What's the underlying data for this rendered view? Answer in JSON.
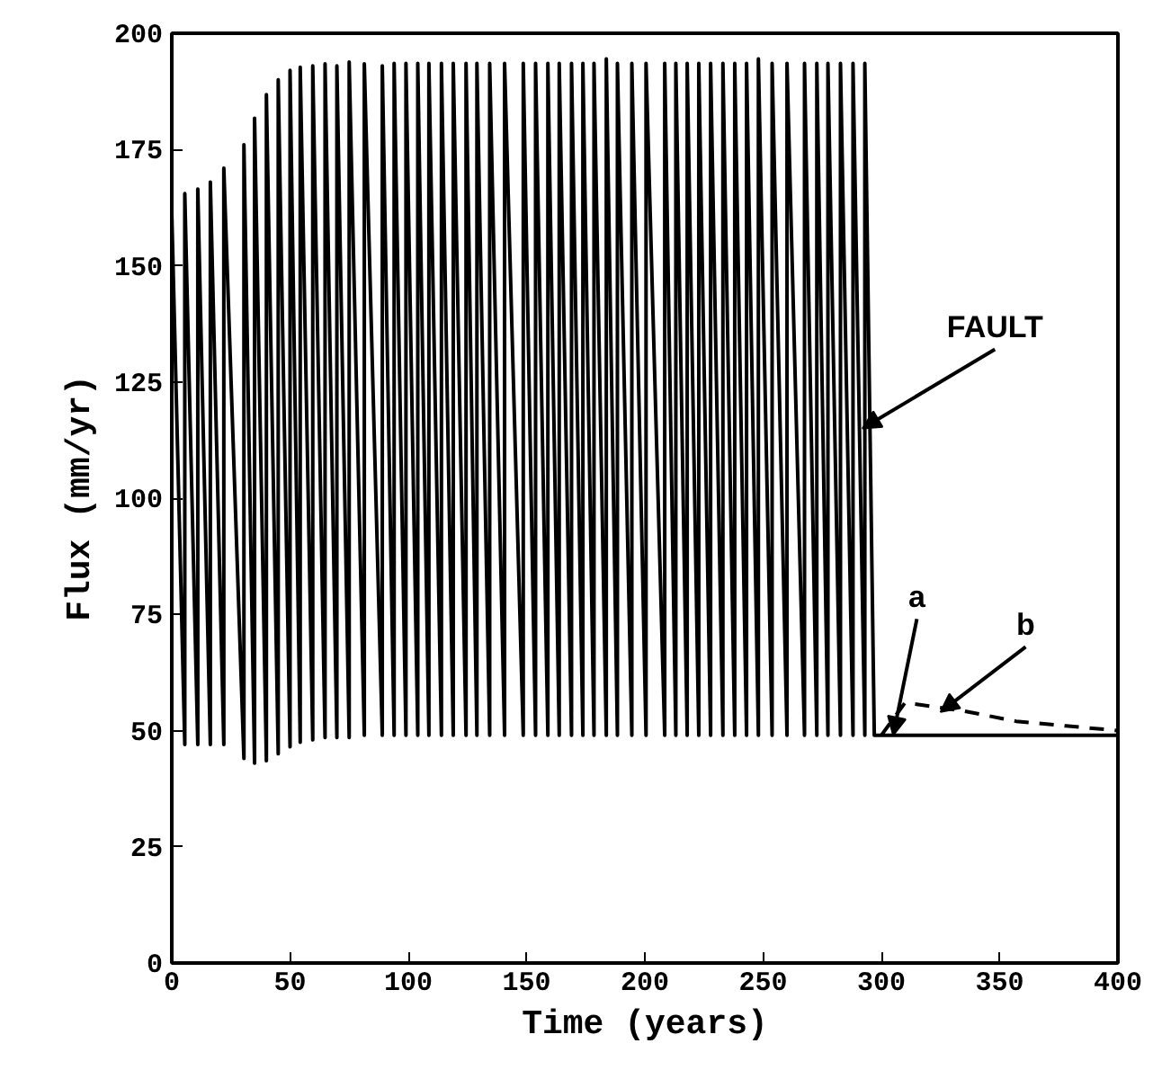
{
  "chart_data": {
    "type": "line",
    "xlabel": "Time (years)",
    "ylabel": "Flux (mm/yr)",
    "xlim": [
      0,
      400
    ],
    "ylim": [
      0,
      200
    ],
    "xticks": [
      0,
      50,
      100,
      150,
      200,
      250,
      300,
      350,
      400
    ],
    "yticks": [
      0,
      25,
      50,
      75,
      100,
      125,
      150,
      175,
      200
    ],
    "grid": false,
    "marker": "none",
    "series": [
      {
        "color": "#000000",
        "line_style": "solid",
        "x": [
          0,
          0,
          5.5,
          5.5,
          11,
          11,
          16.3,
          16.3,
          22,
          22,
          30.5,
          30.5,
          35,
          35,
          40,
          40,
          45,
          45,
          50,
          50,
          54.3,
          54.3,
          59.6,
          59.6,
          64.8,
          64.8,
          69.8,
          69.8,
          75,
          75,
          81.4,
          81.4,
          89,
          89,
          94,
          94,
          99,
          99,
          104,
          104,
          108.7,
          108.7,
          114,
          114,
          119,
          119,
          124.4,
          124.4,
          129,
          129,
          134.4,
          134.4,
          140.7,
          140.7,
          148.6,
          148.6,
          153.8,
          153.8,
          159,
          159,
          163.8,
          163.8,
          169,
          169,
          173.8,
          173.8,
          178.5,
          178.5,
          183.7,
          183.7,
          188.4,
          188.4,
          194.5,
          194.5,
          200.5,
          200.5,
          208.4,
          208.4,
          213.1,
          213.1,
          217.9,
          217.9,
          222.8,
          222.8,
          227.8,
          227.8,
          233,
          233,
          238,
          238,
          243,
          243,
          248,
          248,
          253.8,
          253.8,
          260.1,
          260.1,
          267.5,
          267.5,
          272.7,
          272.7,
          277.4,
          277.4,
          282.7,
          282.7,
          288,
          288,
          293,
          293,
          297,
          400
        ],
        "values": [
          47,
          161.5,
          47,
          165.5,
          47,
          166.5,
          47,
          168,
          47,
          171,
          44,
          176,
          43,
          181.7,
          43.5,
          186.8,
          45,
          190,
          46.5,
          192,
          47.5,
          192.7,
          48,
          193,
          48.5,
          193.4,
          48.5,
          193,
          48.5,
          193.8,
          49,
          193.4,
          49,
          193,
          49,
          193.5,
          49,
          193.5,
          49,
          193.5,
          49,
          193.5,
          49,
          193.5,
          49,
          193.5,
          49,
          193.5,
          49,
          193.5,
          49,
          193.5,
          49,
          193.5,
          49,
          193.5,
          49,
          193.5,
          49,
          193.5,
          49,
          193.5,
          49,
          193.5,
          49,
          193.5,
          49,
          193.5,
          49,
          194.5,
          49,
          193.5,
          49,
          193.5,
          49,
          193.5,
          49,
          193.5,
          49,
          193.5,
          49,
          193.5,
          49,
          193.5,
          49,
          193.5,
          49,
          193.5,
          49,
          193.5,
          49,
          193.5,
          49,
          194.5,
          49,
          193.5,
          49,
          193.5,
          49,
          193.5,
          49,
          193.5,
          49,
          193.5,
          49,
          193.5,
          49,
          193.5,
          49,
          193.5,
          49,
          49
        ]
      },
      {
        "color": "#000000",
        "line_style": "dashed",
        "x": [
          300,
          310,
          335,
          357,
          378,
          400
        ],
        "values": [
          49,
          56,
          54.2,
          52,
          51,
          50
        ]
      }
    ],
    "annotations": [
      {
        "text": "FAULT",
        "x": 292,
        "y": 115
      },
      {
        "text": "a",
        "x": 305,
        "y": 49
      },
      {
        "text": "b",
        "x": 325,
        "y": 54
      }
    ]
  }
}
